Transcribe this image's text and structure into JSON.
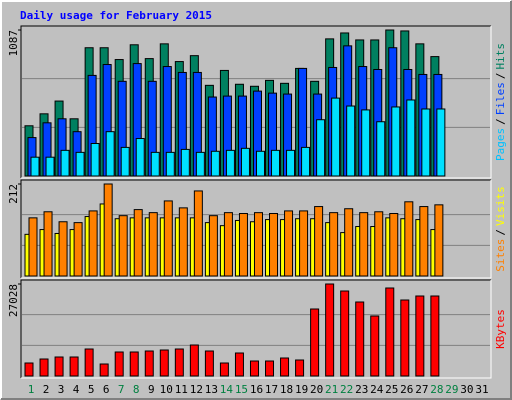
{
  "chart_data": [
    {
      "type": "bar",
      "title": "Daily usage for February 2015",
      "ylim": [
        0,
        1087
      ],
      "yticks": [
        1087
      ],
      "legend_separator": "/",
      "series": [
        {
          "name": "Hits",
          "color": "#008060",
          "label_color": "#008060",
          "values": [
            374,
            463,
            558,
            426,
            955,
            955,
            867,
            977,
            874,
            984,
            852,
            896,
            675,
            786,
            683,
            668,
            712,
            690,
            801,
            705,
            1021,
            1065,
            1013,
            1013,
            1087,
            1080,
            984,
            889,
            null,
            null,
            null
          ]
        },
        {
          "name": "Files",
          "color": "#0040FF",
          "label_color": "#0040FF",
          "values": [
            286,
            396,
            426,
            330,
            749,
            830,
            705,
            837,
            705,
            815,
            771,
            771,
            588,
            595,
            595,
            632,
            617,
            610,
            801,
            610,
            808,
            969,
            815,
            793,
            955,
            793,
            756,
            756,
            null,
            null,
            null
          ]
        },
        {
          "name": "Pages",
          "color": "#00E0FF",
          "label_color": "#00C0FF",
          "values": [
            140,
            140,
            191,
            176,
            242,
            330,
            213,
            279,
            176,
            176,
            198,
            176,
            184,
            191,
            206,
            184,
            191,
            191,
            213,
            419,
            580,
            521,
            492,
            404,
            514,
            566,
            499,
            499,
            null,
            null,
            null
          ]
        }
      ]
    },
    {
      "type": "bar",
      "ylim": [
        0,
        212
      ],
      "yticks": [
        212
      ],
      "legend_separator": "/",
      "series": [
        {
          "name": "Visits",
          "color": "#FFFF00",
          "label_color": "#FFFF00",
          "values": [
            96,
            107,
            98,
            107,
            137,
            166,
            132,
            134,
            134,
            134,
            134,
            134,
            123,
            116,
            128,
            125,
            130,
            130,
            132,
            132,
            123,
            100,
            114,
            114,
            134,
            132,
            130,
            107,
            null,
            null,
            null
          ]
        },
        {
          "name": "Sites",
          "color": "#FF8000",
          "label_color": "#FF8000",
          "values": [
            134,
            148,
            125,
            123,
            150,
            212,
            139,
            153,
            146,
            173,
            157,
            196,
            139,
            146,
            144,
            146,
            144,
            150,
            150,
            160,
            146,
            155,
            146,
            148,
            144,
            171,
            160,
            164,
            null,
            null,
            null
          ]
        }
      ]
    },
    {
      "type": "bar",
      "ylim": [
        0,
        27028
      ],
      "yticks": [
        27028
      ],
      "series": [
        {
          "name": "KBytes",
          "color": "#FF0000",
          "label_color": "#FF0000",
          "values": [
            3819,
            4994,
            5582,
            5582,
            7932,
            3525,
            7051,
            7051,
            7345,
            7638,
            7932,
            9107,
            7345,
            3819,
            6757,
            4407,
            4407,
            5288,
            4701,
            19684,
            27028,
            24972,
            21740,
            17627,
            25853,
            22327,
            23503,
            23503,
            null,
            null,
            null
          ]
        }
      ],
      "categories": [
        "1",
        "2",
        "3",
        "4",
        "5",
        "6",
        "7",
        "8",
        "9",
        "10",
        "11",
        "12",
        "13",
        "14",
        "15",
        "16",
        "17",
        "18",
        "19",
        "20",
        "21",
        "22",
        "23",
        "24",
        "25",
        "26",
        "27",
        "28",
        "29",
        "30",
        "31"
      ],
      "category_colors": [
        "#008040",
        "#000000",
        "#000000",
        "#000000",
        "#000000",
        "#000000",
        "#008040",
        "#008040",
        "#000000",
        "#000000",
        "#000000",
        "#000000",
        "#000000",
        "#008040",
        "#008040",
        "#000000",
        "#000000",
        "#000000",
        "#000000",
        "#000000",
        "#008040",
        "#008040",
        "#000000",
        "#000000",
        "#000000",
        "#000000",
        "#000000",
        "#008040",
        "#008040",
        "#000000",
        "#000000"
      ]
    }
  ]
}
